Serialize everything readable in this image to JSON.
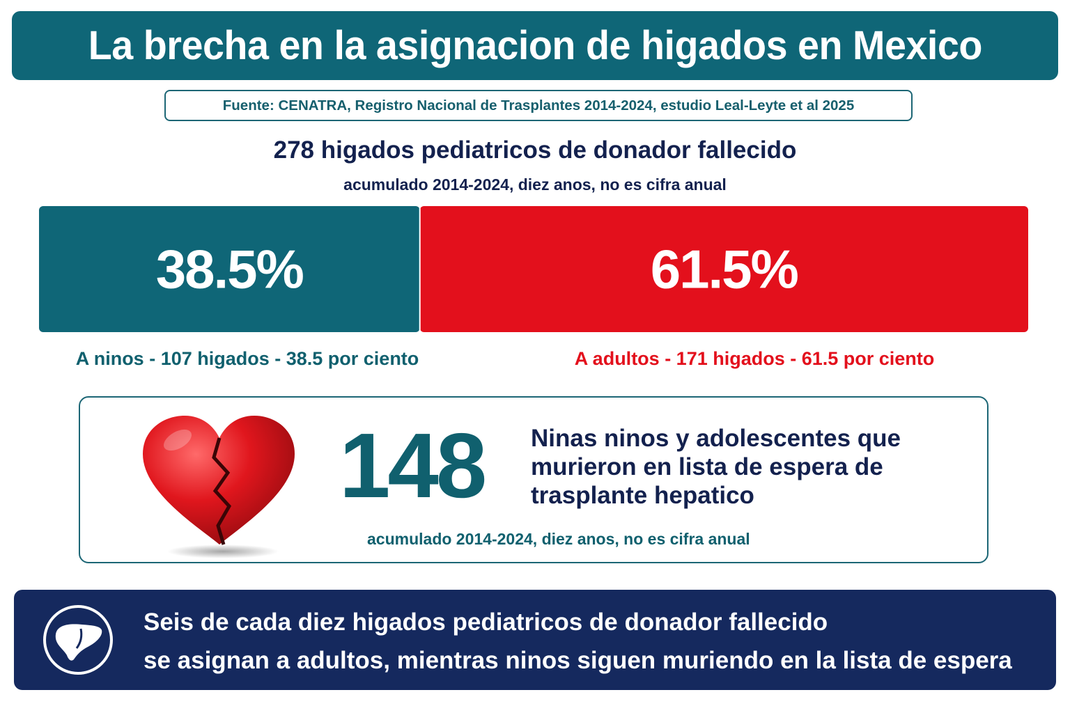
{
  "header": {
    "title": "La brecha en la asignacion de higados en Mexico",
    "source": "Fuente: CENATRA, Registro Nacional de Trasplantes 2014-2024, estudio Leal-Leyte et al 2025"
  },
  "summary": {
    "headline": "278 higados pediatricos de donador fallecido",
    "note": "acumulado 2014-2024, diez anos, no es cifra anual"
  },
  "chart_data": {
    "type": "bar",
    "orientation": "horizontal-stacked",
    "categories": [
      "A ninos",
      "A adultos"
    ],
    "values": [
      38.5,
      61.5
    ],
    "counts": [
      107,
      171
    ],
    "total": 278,
    "colors": [
      "#0f6677",
      "#e3101c"
    ],
    "value_labels": [
      "38.5%",
      "61.5%"
    ],
    "category_labels": [
      "A ninos - 107 higados - 38.5 por ciento",
      "A adultos - 171 higados -  61.5 por ciento"
    ]
  },
  "deaths": {
    "number": "148",
    "description": "Ninas ninos y adolescentes que murieron en lista de espera de trasplante hepatico",
    "note": "acumulado 2014-2024, diez anos, no es cifra anual",
    "icon": "broken-heart-icon"
  },
  "footer": {
    "line1": "Seis de cada diez higados pediatricos de donador fallecido",
    "line2": "se asignan a adultos, mientras ninos siguen muriendo en la lista de espera",
    "icon": "liver-icon"
  },
  "colors": {
    "teal": "#0f6677",
    "red": "#e3101c",
    "navy": "#15295e"
  }
}
